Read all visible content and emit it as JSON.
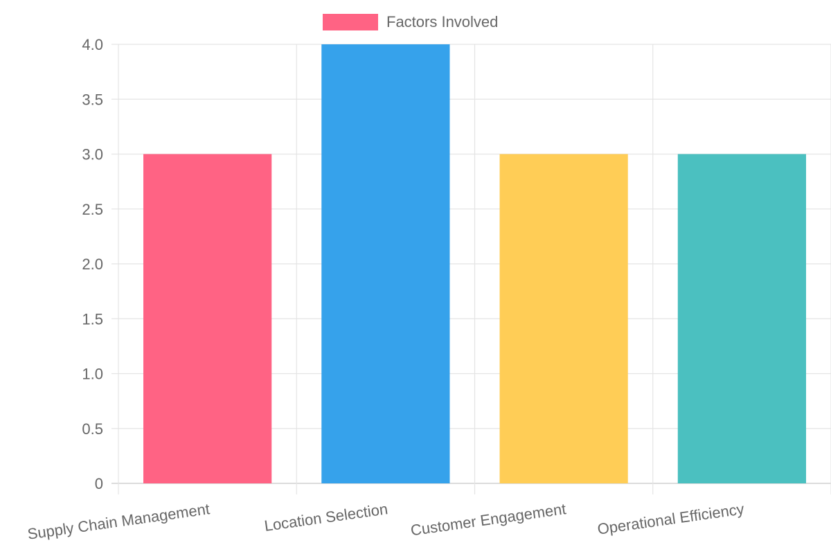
{
  "chart_data": {
    "type": "bar",
    "title": "",
    "xlabel": "",
    "ylabel": "",
    "categories": [
      "Supply Chain Management",
      "Location Selection",
      "Customer Engagement",
      "Operational Efficiency"
    ],
    "series": [
      {
        "name": "Factors Involved",
        "values": [
          3,
          4,
          3,
          3
        ],
        "colors": [
          "#ff6384",
          "#36a2eb",
          "#ffcd56",
          "#4bc0c0"
        ]
      }
    ],
    "ylim": [
      0,
      4
    ],
    "yticks": [
      "0",
      "0.5",
      "1.0",
      "1.5",
      "2.0",
      "2.5",
      "3.0",
      "3.5",
      "4.0"
    ],
    "grid": true,
    "legend_position": "top"
  },
  "legend": {
    "label": "Factors Involved",
    "swatch_color": "#ff6384"
  }
}
